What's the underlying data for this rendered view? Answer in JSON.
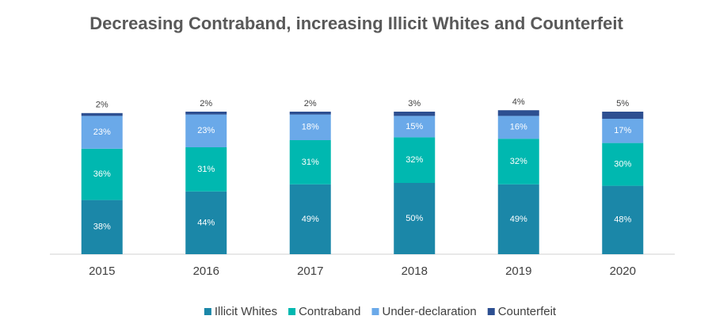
{
  "chart_data": {
    "type": "stacked_bar",
    "title": "Decreasing Contraband, increasing Illicit Whites and Counterfeit",
    "categories": [
      "2015",
      "2016",
      "2017",
      "2018",
      "2019",
      "2020"
    ],
    "series": [
      {
        "name": "Illicit Whites",
        "color": "#1b87a8",
        "values": [
          38,
          44,
          49,
          50,
          49,
          48
        ],
        "value_labels": [
          "38%",
          "44%",
          "49%",
          "50%",
          "49%",
          "48%"
        ]
      },
      {
        "name": "Contraband",
        "color": "#00b8b0",
        "values": [
          36,
          31,
          31,
          32,
          32,
          30
        ],
        "value_labels": [
          "36%",
          "31%",
          "31%",
          "32%",
          "32%",
          "30%"
        ]
      },
      {
        "name": "Under-declaration",
        "color": "#6aa9e9",
        "values": [
          23,
          23,
          18,
          15,
          16,
          17
        ],
        "value_labels": [
          "23%",
          "23%",
          "18%",
          "15%",
          "16%",
          "17%"
        ]
      },
      {
        "name": "Counterfeit",
        "color": "#2d4f91",
        "values": [
          2,
          2,
          2,
          3,
          4,
          5
        ],
        "value_labels": [
          "2%",
          "2%",
          "2%",
          "3%",
          "4%",
          "5%"
        ]
      }
    ],
    "legend": "bottom"
  }
}
